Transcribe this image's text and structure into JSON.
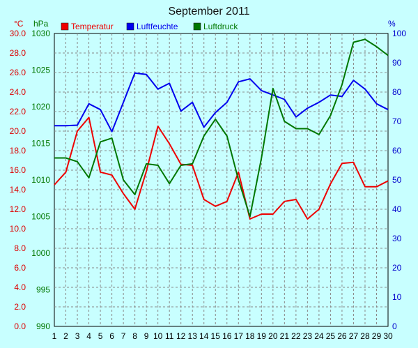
{
  "chart_data": {
    "type": "line",
    "title": "September 2011",
    "x": [
      1,
      2,
      3,
      4,
      5,
      6,
      7,
      8,
      9,
      10,
      11,
      12,
      13,
      14,
      15,
      16,
      17,
      18,
      19,
      20,
      21,
      22,
      23,
      24,
      25,
      26,
      27,
      28,
      29,
      30
    ],
    "axes": {
      "temp": {
        "unit": "°C",
        "ylim": [
          0,
          30
        ],
        "ticks": [
          "0.0",
          "2.0",
          "4.0",
          "6.0",
          "8.0",
          "10.0",
          "12.0",
          "14.0",
          "16.0",
          "18.0",
          "20.0",
          "22.0",
          "24.0",
          "26.0",
          "28.0",
          "30.0"
        ],
        "color": "#dd0000"
      },
      "press": {
        "unit": "hPa",
        "ylim": [
          990,
          1030
        ],
        "ticks": [
          "990",
          "995",
          "1000",
          "1005",
          "1010",
          "1015",
          "1020",
          "1025",
          "1030"
        ],
        "color": "#007700"
      },
      "hum": {
        "unit": "%",
        "ylim": [
          0,
          100
        ],
        "ticks": [
          "0",
          "10",
          "20",
          "30",
          "40",
          "50",
          "60",
          "70",
          "80",
          "90",
          "100"
        ],
        "color": "#0000cc"
      }
    },
    "series": [
      {
        "name": "Temperatur",
        "axis": "temp",
        "color": "#ee0000",
        "values": [
          14.5,
          15.8,
          20.0,
          21.4,
          15.8,
          15.5,
          13.6,
          12.0,
          15.9,
          20.5,
          18.7,
          16.6,
          16.5,
          13.0,
          12.3,
          12.8,
          15.8,
          11.0,
          11.5,
          11.5,
          12.8,
          13.0,
          11.0,
          12.0,
          14.6,
          16.7,
          16.8,
          14.3,
          14.3,
          14.9
        ]
      },
      {
        "name": "Luftfeuchte",
        "axis": "hum",
        "color": "#0000ee",
        "values": [
          68.5,
          68.5,
          68.7,
          76.0,
          74.0,
          66.5,
          76.5,
          86.5,
          86.0,
          81.0,
          83.0,
          73.5,
          76.5,
          68.0,
          73.0,
          76.5,
          83.5,
          84.5,
          80.5,
          79.0,
          77.5,
          71.5,
          74.5,
          76.5,
          79.0,
          78.5,
          84.0,
          81.0,
          76.0,
          74.0
        ]
      },
      {
        "name": "Luftdruck",
        "axis": "press",
        "color": "#007700",
        "values": [
          1013.0,
          1013.0,
          1012.5,
          1010.3,
          1015.2,
          1015.7,
          1010.0,
          1008.0,
          1012.2,
          1012.0,
          1009.5,
          1012.0,
          1012.2,
          1016.0,
          1018.3,
          1016.0,
          1010.0,
          1005.0,
          1013.0,
          1022.5,
          1018.0,
          1017.0,
          1017.0,
          1016.2,
          1018.8,
          1023.0,
          1028.8,
          1029.2,
          1028.2,
          1027.0
        ]
      }
    ],
    "grid": true,
    "legend": "top"
  }
}
